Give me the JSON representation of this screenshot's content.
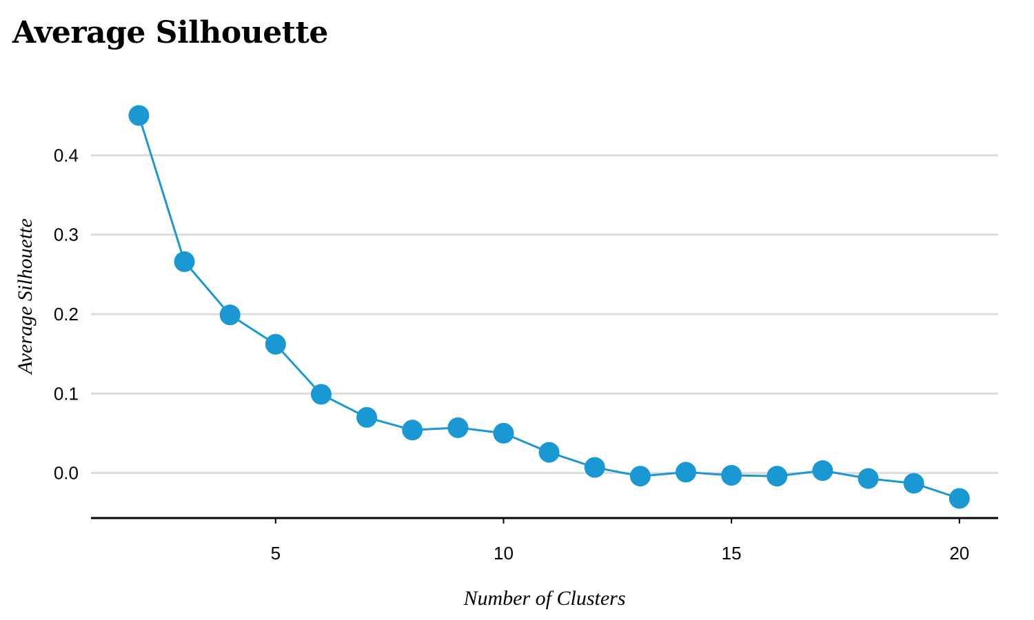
{
  "chart_data": {
    "type": "line",
    "title": "Average Silhouette",
    "xlabel": "Number of Clusters",
    "ylabel": "Average Silhouette",
    "x": [
      2,
      3,
      4,
      5,
      6,
      7,
      8,
      9,
      10,
      11,
      12,
      13,
      14,
      15,
      16,
      17,
      18,
      19,
      20
    ],
    "y": [
      0.45,
      0.266,
      0.199,
      0.162,
      0.099,
      0.07,
      0.054,
      0.057,
      0.05,
      0.026,
      0.007,
      -0.004,
      0.001,
      -0.003,
      -0.004,
      0.003,
      -0.007,
      -0.013,
      -0.032
    ],
    "xticks": [
      5,
      10,
      15,
      20
    ],
    "yticks": [
      0.0,
      0.1,
      0.2,
      0.3,
      0.4
    ],
    "ytick_labels": [
      "0.0",
      "0.1",
      "0.2",
      "0.3",
      "0.4"
    ],
    "xlim": [
      0.95,
      20.85
    ],
    "ylim": [
      -0.055,
      0.5
    ],
    "grid": "horizontal",
    "legend": "none",
    "colors": {
      "series": "#1a98d4",
      "grid": "#dcdcdc",
      "axis": "#000000"
    }
  }
}
